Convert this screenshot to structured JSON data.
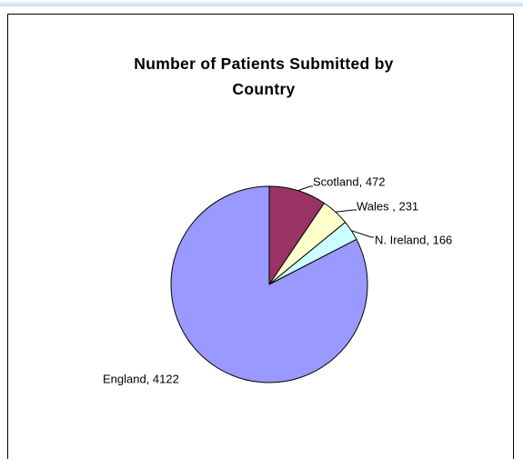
{
  "chart_data": {
    "type": "pie",
    "title_lines": [
      "Number of Patients Submitted by",
      "Country"
    ],
    "slices": [
      {
        "label": "England",
        "value": 4122,
        "display": "England, 4122",
        "color": "#9999ff"
      },
      {
        "label": "Scotland",
        "value": 472,
        "display": "Scotland, 472",
        "color": "#993366"
      },
      {
        "label": "Wales",
        "value": 231,
        "display": "Wales , 231",
        "color": "#ffffcc"
      },
      {
        "label": "N. Ireland",
        "value": 166,
        "display": "N. Ireland, 166",
        "color": "#ccffff"
      }
    ],
    "start_slice": "Scotland",
    "direction": "clockwise"
  }
}
